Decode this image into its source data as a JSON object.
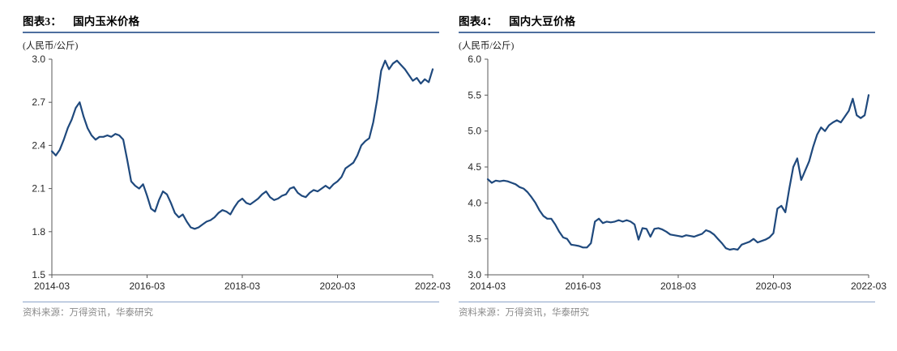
{
  "page": {
    "background": "#ffffff"
  },
  "styles": {
    "title_rule_color": "#4e6f9f",
    "source_rule_color": "#8aa3c9",
    "source_text_color": "#8a8a8a",
    "axis_color": "#595959",
    "tick_label_color": "#262626"
  },
  "chart_data": [
    {
      "type": "line",
      "title_prefix": "图表3：",
      "title": "国内玉米价格",
      "unit": "(人民币/公斤)",
      "source": "资料来源：万得资讯，华泰研究",
      "legend": "none",
      "grid": false,
      "x_start": "2014-03",
      "x_end": "2022-03",
      "x_tick_labels": [
        "2014-03",
        "2016-03",
        "2018-03",
        "2020-03",
        "2022-03"
      ],
      "x_tick_indices": [
        0,
        24,
        48,
        72,
        96
      ],
      "y_ticks": [
        1.5,
        1.8,
        2.1,
        2.4,
        2.7,
        3.0
      ],
      "ylim": [
        1.5,
        3.0
      ],
      "line_color": "#1F497D",
      "series": [
        {
          "name": "国内玉米价格",
          "x_unit": "monthly from 2014-03 to 2022-03",
          "values": [
            2.36,
            2.33,
            2.37,
            2.44,
            2.52,
            2.58,
            2.66,
            2.7,
            2.6,
            2.52,
            2.47,
            2.44,
            2.46,
            2.46,
            2.47,
            2.46,
            2.48,
            2.47,
            2.44,
            2.3,
            2.15,
            2.12,
            2.1,
            2.13,
            2.05,
            1.96,
            1.94,
            2.02,
            2.08,
            2.06,
            2.0,
            1.93,
            1.9,
            1.92,
            1.87,
            1.83,
            1.82,
            1.83,
            1.85,
            1.87,
            1.88,
            1.9,
            1.93,
            1.95,
            1.94,
            1.92,
            1.97,
            2.01,
            2.03,
            2.0,
            1.99,
            2.01,
            2.03,
            2.06,
            2.08,
            2.04,
            2.02,
            2.03,
            2.05,
            2.06,
            2.1,
            2.11,
            2.07,
            2.05,
            2.04,
            2.07,
            2.09,
            2.08,
            2.1,
            2.12,
            2.1,
            2.13,
            2.15,
            2.18,
            2.24,
            2.26,
            2.28,
            2.33,
            2.4,
            2.43,
            2.45,
            2.56,
            2.72,
            2.92,
            2.99,
            2.93,
            2.97,
            2.99,
            2.96,
            2.93,
            2.89,
            2.85,
            2.87,
            2.83,
            2.86,
            2.84,
            2.93
          ]
        }
      ]
    },
    {
      "type": "line",
      "title_prefix": "图表4：",
      "title": "国内大豆价格",
      "unit": "(人民币/公斤)",
      "source": "资料来源：万得资讯，华泰研究",
      "legend": "none",
      "grid": false,
      "x_start": "2014-03",
      "x_end": "2022-03",
      "x_tick_labels": [
        "2014-03",
        "2016-03",
        "2018-03",
        "2020-03",
        "2022-03"
      ],
      "x_tick_indices": [
        0,
        24,
        48,
        72,
        96
      ],
      "y_ticks": [
        3.0,
        3.5,
        4.0,
        4.5,
        5.0,
        5.5,
        6.0
      ],
      "ylim": [
        3.0,
        6.0
      ],
      "line_color": "#1F497D",
      "series": [
        {
          "name": "国内大豆价格",
          "x_unit": "monthly from 2014-03 to 2022-03",
          "values": [
            4.33,
            4.28,
            4.31,
            4.3,
            4.31,
            4.3,
            4.28,
            4.26,
            4.22,
            4.2,
            4.15,
            4.08,
            4.0,
            3.9,
            3.82,
            3.78,
            3.78,
            3.7,
            3.6,
            3.52,
            3.5,
            3.42,
            3.41,
            3.4,
            3.38,
            3.38,
            3.44,
            3.74,
            3.78,
            3.72,
            3.74,
            3.73,
            3.74,
            3.76,
            3.74,
            3.76,
            3.74,
            3.7,
            3.49,
            3.65,
            3.64,
            3.53,
            3.64,
            3.65,
            3.63,
            3.6,
            3.56,
            3.55,
            3.54,
            3.53,
            3.55,
            3.54,
            3.53,
            3.55,
            3.57,
            3.62,
            3.6,
            3.56,
            3.5,
            3.44,
            3.37,
            3.35,
            3.36,
            3.35,
            3.42,
            3.44,
            3.46,
            3.5,
            3.45,
            3.47,
            3.49,
            3.52,
            3.58,
            3.92,
            3.96,
            3.87,
            4.2,
            4.5,
            4.62,
            4.32,
            4.45,
            4.58,
            4.78,
            4.95,
            5.05,
            5.0,
            5.08,
            5.12,
            5.15,
            5.12,
            5.2,
            5.28,
            5.45,
            5.22,
            5.18,
            5.22,
            5.5
          ]
        }
      ]
    }
  ]
}
